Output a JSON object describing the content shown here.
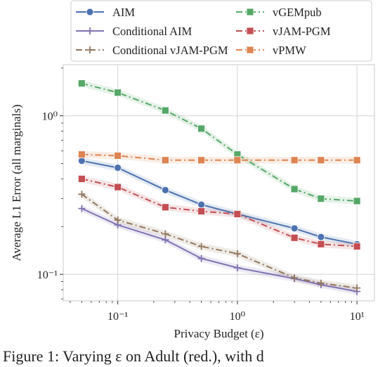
{
  "chart_data": {
    "type": "line",
    "xlabel": "Privacy Budget (ε)",
    "ylabel": "Average L1 Error (all marginals)",
    "x_scale": "log",
    "y_scale": "log",
    "xlim": [
      0.035,
      14
    ],
    "ylim": [
      0.068,
      2.1
    ],
    "x_ticks": [
      0.1,
      1,
      10
    ],
    "x_tick_labels": [
      "10⁻¹",
      "10⁰",
      "10¹"
    ],
    "y_ticks": [
      0.1,
      1
    ],
    "y_tick_labels": [
      "10⁻¹",
      "10⁰"
    ],
    "grid": true,
    "legend_position": "top (above plot)",
    "x": [
      0.05,
      0.1,
      0.25,
      0.5,
      1,
      3,
      5,
      10
    ],
    "series": [
      {
        "name": "AIM",
        "color": "#4c72b0",
        "marker": "circle",
        "dash": "solid",
        "values": [
          0.52,
          0.47,
          0.34,
          0.275,
          0.24,
          0.195,
          0.172,
          0.155
        ]
      },
      {
        "name": "vGEMpub",
        "color": "#55a868",
        "marker": "square",
        "dash": "dashdot",
        "values": [
          1.6,
          1.4,
          1.08,
          0.83,
          0.57,
          0.345,
          0.3,
          0.29
        ]
      },
      {
        "name": "Conditional AIM",
        "color": "#8172b3",
        "marker": "plus",
        "dash": "solid",
        "values": [
          0.26,
          0.205,
          0.165,
          0.126,
          0.11,
          0.094,
          0.086,
          0.078
        ]
      },
      {
        "name": "vJAM-PGM",
        "color": "#c44e52",
        "marker": "square",
        "dash": "dashdot",
        "values": [
          0.4,
          0.355,
          0.265,
          0.25,
          0.24,
          0.17,
          0.155,
          0.15
        ]
      },
      {
        "name": "Conditional vJAM-PGM",
        "color": "#937860",
        "marker": "plus",
        "dash": "dashdot",
        "values": [
          0.32,
          0.22,
          0.18,
          0.15,
          0.135,
          0.095,
          0.088,
          0.082
        ]
      },
      {
        "name": "vPMW",
        "color": "#dd8452",
        "marker": "square",
        "dash": "dashdot",
        "values": [
          0.57,
          0.56,
          0.525,
          0.525,
          0.525,
          0.525,
          0.525,
          0.525
        ]
      }
    ]
  },
  "caption": "Figure 1: Varying ε on Adult (red.), with d"
}
